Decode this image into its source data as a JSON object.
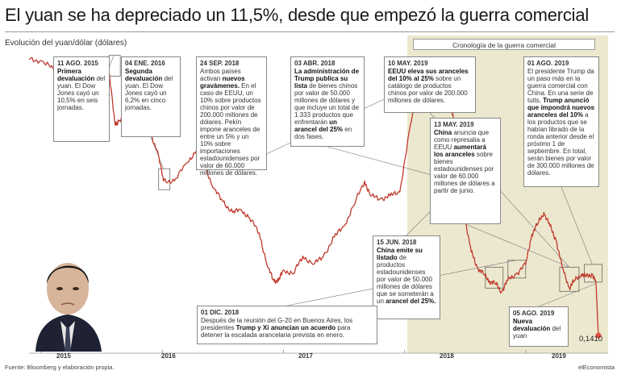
{
  "title": "El yuan se ha depreciado un 11,5%, desde que empezó la guerra comercial",
  "subtitle": "Evolución del yuan/dólar (dólares)",
  "timeline_label": "Cronología de la guerra comercial",
  "end_value": "0,1410",
  "footer": {
    "source": "Fuente: Bloomberg y elaboración propia.",
    "brand": "elEconomista"
  },
  "x_ticks": [
    "2015",
    "2016",
    "2017",
    "2018",
    "2019"
  ],
  "colors": {
    "line": "#c0392b",
    "highlight": "#ece8cf",
    "marker": "#e74c3c"
  },
  "annotations": [
    {
      "date": "11 AGO. 2015",
      "parts": [
        [
          "b",
          "Primera devaluación"
        ],
        [
          "t",
          " del yuan. El Dow Jones cayó un 10,5% en seis jornadas."
        ]
      ]
    },
    {
      "date": "04 ENE. 2016",
      "parts": [
        [
          "b",
          "Segunda devaluación"
        ],
        [
          "t",
          " del yuan. El Dow Jones cayó un 6,2% en cinco jornadas."
        ]
      ]
    },
    {
      "date": "24 SEP. 2018",
      "parts": [
        [
          "t",
          "Ambos países activan "
        ],
        [
          "b",
          "nuevos gravámenes."
        ],
        [
          "t",
          " En el caso de EEUU, un 10% sobre productos chinos por valor de 200.000 millones de dólares. Pekín impone aranceles de entre un 5% y un 10% sobre importaciones estadounidenses por valor de 60.000 millones de dólares."
        ]
      ]
    },
    {
      "date": "03 ABR. 2018",
      "parts": [
        [
          "b",
          "La administración de Trump publica su lista"
        ],
        [
          "t",
          " de bienes chinos por valor de 50.000 millones de dólares y que incluye un total de 1.333 productos que enfrentarán "
        ],
        [
          "b",
          "un arancel del 25%"
        ],
        [
          "t",
          " en dos fases."
        ]
      ]
    },
    {
      "date": "10 MAY. 2019",
      "parts": [
        [
          "b",
          "EEUU eleva sus aranceles del 10% al 25%"
        ],
        [
          "t",
          " sobre un catálogo de productos chinos por valor de 200.000 millones de dólares."
        ]
      ]
    },
    {
      "date": "13 MAY. 2019",
      "parts": [
        [
          "b",
          "China"
        ],
        [
          "t",
          " anuncia que como represalia a EEUU "
        ],
        [
          "b",
          "aumentará los aranceles"
        ],
        [
          "t",
          " sobre bienes estadounidenses por valor de 60.000 millones de dólares a partir de junio."
        ]
      ]
    },
    {
      "date": "01 AGO. 2019",
      "parts": [
        [
          "t",
          "El presidente Trump da un paso más en la guerra comercial con China. En una serie de tuits, "
        ],
        [
          "b",
          "Trump anunció que impondrá nuevos aranceles del 10%"
        ],
        [
          "t",
          " a los productos que se habían librado de la ronda anterior desde el próximo 1 de septiembre. En total, serán bienes por valor de 300.000 millones de dólares."
        ]
      ]
    },
    {
      "date": "15 JUN. 2018",
      "parts": [
        [
          "b",
          "China emite su listado"
        ],
        [
          "t",
          " de productos estadounidenses por valor de 50.000 millones de dólares que se someterán a un "
        ],
        [
          "b",
          "arancel del 25%."
        ]
      ]
    },
    {
      "date": "01 DIC. 2018",
      "parts": [
        [
          "t",
          "Después de la reunión del G-20 en Buenos Aires, los presidentes "
        ],
        [
          "b",
          "Trump y Xi anuncian un acuerdo"
        ],
        [
          "t",
          " para detener la escalada arancelaria prevista en enero."
        ]
      ]
    },
    {
      "date": "05 AGO. 2019",
      "parts": [
        [
          "b",
          "Nueva devaluación"
        ],
        [
          "t",
          " del yuan"
        ]
      ]
    }
  ],
  "chart_data": {
    "type": "line",
    "title": "El yuan se ha depreciado un 11,5%, desde que empezó la guerra comercial",
    "ylabel": "Evolución del yuan/dólar (dólares)",
    "xlabel": "",
    "ylim": [
      0.14,
      0.162
    ],
    "x_ticks": [
      "2015",
      "2016",
      "2017",
      "2018",
      "2019"
    ],
    "grid": false,
    "series": [
      {
        "x": [
          2014.9,
          2015.0,
          2015.1,
          2015.2,
          2015.3,
          2015.4,
          2015.5,
          2015.55,
          2015.61,
          2015.64,
          2015.7,
          2015.8,
          2015.9,
          2015.96,
          2016.01,
          2016.1,
          2016.2,
          2016.28,
          2016.35,
          2016.42,
          2016.5,
          2016.58,
          2016.65,
          2016.72,
          2016.8,
          2016.87,
          2016.92,
          2016.96,
          2017.0,
          2017.08,
          2017.16,
          2017.25,
          2017.33,
          2017.42,
          2017.5,
          2017.58,
          2017.67,
          2017.72,
          2017.8,
          2017.88,
          2017.96,
          2018.05,
          2018.1,
          2018.15,
          2018.2,
          2018.26,
          2018.3,
          2018.35,
          2018.4,
          2018.45,
          2018.5,
          2018.55,
          2018.6,
          2018.65,
          2018.7,
          2018.75,
          2018.8,
          2018.85,
          2018.92,
          2019.0,
          2019.05,
          2019.1,
          2019.15,
          2019.2,
          2019.25,
          2019.3,
          2019.36,
          2019.4,
          2019.46,
          2019.5,
          2019.55,
          2019.58,
          2019.6
        ],
        "values": [
          0.1612,
          0.1611,
          0.1605,
          0.1608,
          0.1602,
          0.1607,
          0.1605,
          0.1611,
          0.1564,
          0.1567,
          0.157,
          0.1558,
          0.1558,
          0.1545,
          0.1523,
          0.1523,
          0.1536,
          0.1545,
          0.1535,
          0.1518,
          0.1508,
          0.15,
          0.1502,
          0.1496,
          0.1485,
          0.146,
          0.145,
          0.145,
          0.1458,
          0.1455,
          0.1468,
          0.1462,
          0.1468,
          0.1482,
          0.149,
          0.1505,
          0.1523,
          0.1512,
          0.151,
          0.1512,
          0.1515,
          0.1565,
          0.1582,
          0.1583,
          0.1593,
          0.1575,
          0.159,
          0.1582,
          0.1572,
          0.1512,
          0.1495,
          0.1471,
          0.146,
          0.1455,
          0.145,
          0.1448,
          0.1442,
          0.145,
          0.1455,
          0.1462,
          0.1484,
          0.1492,
          0.15,
          0.149,
          0.148,
          0.146,
          0.1445,
          0.145,
          0.1455,
          0.1453,
          0.1455,
          0.1448,
          0.141
        ]
      }
    ]
  }
}
